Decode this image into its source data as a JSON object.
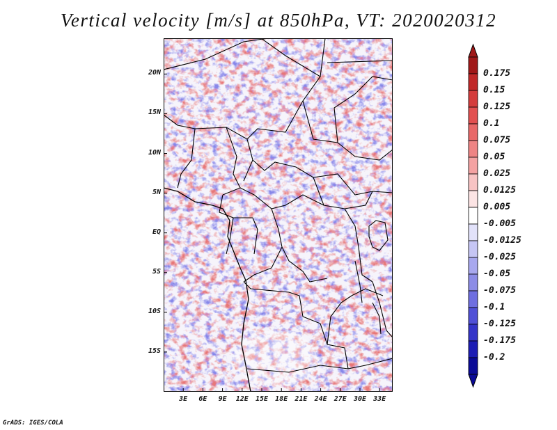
{
  "title": "Vertical velocity [m/s] at 850hPa, VT: 2020020312",
  "credit": "GrADS: IGES/COLA",
  "map": {
    "lon_min": 0.0,
    "lon_max": 35.0,
    "lat_min": -20.0,
    "lat_max": 24.5,
    "lat_ticks": [
      {
        "lat": 20,
        "label": "20N"
      },
      {
        "lat": 15,
        "label": "15N"
      },
      {
        "lat": 10,
        "label": "10N"
      },
      {
        "lat": 5,
        "label": "5N"
      },
      {
        "lat": 0,
        "label": "EQ"
      },
      {
        "lat": -5,
        "label": "5S"
      },
      {
        "lat": -10,
        "label": "10S"
      },
      {
        "lat": -15,
        "label": "15S"
      }
    ],
    "lon_ticks": [
      {
        "lon": 3,
        "label": "3E"
      },
      {
        "lon": 6,
        "label": "6E"
      },
      {
        "lon": 9,
        "label": "9E"
      },
      {
        "lon": 12,
        "label": "12E"
      },
      {
        "lon": 15,
        "label": "15E"
      },
      {
        "lon": 18,
        "label": "18E"
      },
      {
        "lon": 21,
        "label": "21E"
      },
      {
        "lon": 24,
        "label": "24E"
      },
      {
        "lon": 27,
        "label": "27E"
      },
      {
        "lon": 30,
        "label": "30E"
      },
      {
        "lon": 33,
        "label": "33E"
      }
    ]
  },
  "colorbar": {
    "labels": [
      "0.175",
      "0.15",
      "0.125",
      "0.1",
      "0.075",
      "0.05",
      "0.025",
      "0.0125",
      "0.005",
      "-0.005",
      "-0.0125",
      "-0.025",
      "-0.05",
      "-0.075",
      "-0.1",
      "-0.125",
      "-0.175",
      "-0.2"
    ],
    "colors": [
      "#a01818",
      "#c02828",
      "#d43c3c",
      "#e25050",
      "#e86868",
      "#ee8484",
      "#f4a2a2",
      "#f8c4c4",
      "#fce4e4",
      "#ffffff",
      "#e2e2fa",
      "#c6c6f4",
      "#a8a8ee",
      "#8c8ce6",
      "#6e6ee0",
      "#5050d6",
      "#3434c8",
      "#1c1cb4",
      "#0a0a96"
    ],
    "top_color": "#a01818",
    "bottom_color": "#0a0a96"
  }
}
